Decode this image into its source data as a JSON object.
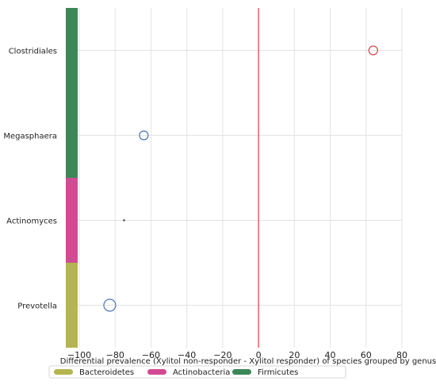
{
  "chart_data": {
    "type": "scatter",
    "title": "",
    "xlabel": "Differential prevalence (Xylitol non-responder - Xylitol responder) of species grouped by genus",
    "ylabel": "",
    "xlim": [
      -103,
      80
    ],
    "xticks": [
      -100,
      -80,
      -60,
      -40,
      -20,
      0,
      20,
      40,
      60,
      80
    ],
    "xtick_labels": [
      "−100",
      "−80",
      "−60",
      "−40",
      "−20",
      "0",
      "20",
      "40",
      "60",
      "80"
    ],
    "grid": true,
    "reference_line": {
      "x": 0,
      "color": "#e8474a"
    },
    "categories": [
      "Clostridiales",
      "Megasphaera",
      "Actinomyces",
      "Prevotella"
    ],
    "points": [
      {
        "category": "Clostridiales",
        "x": 64,
        "size": "medium",
        "color": "#d9434b"
      },
      {
        "category": "Megasphaera",
        "x": -64,
        "size": "medium",
        "color": "#4a74b8"
      },
      {
        "category": "Actinomyces",
        "x": -75,
        "size": "tiny",
        "color": "#333333"
      },
      {
        "category": "Prevotella",
        "x": -83,
        "size": "large",
        "color": "#4a74b8"
      }
    ],
    "phylum_bar": [
      {
        "category": "Clostridiales",
        "phylum": "Firmicutes"
      },
      {
        "category": "Megasphaera",
        "phylum": "Firmicutes"
      },
      {
        "category": "Actinomyces",
        "phylum": "Actinobacteria"
      },
      {
        "category": "Prevotella",
        "phylum": "Bacteroidetes"
      }
    ],
    "legend": {
      "placement": "bottom",
      "entries": [
        {
          "name": "Bacteroidetes",
          "color": "#b5b550"
        },
        {
          "name": "Actinobacteria",
          "color": "#d24a93"
        },
        {
          "name": "Firmicutes",
          "color": "#3c8757"
        }
      ]
    }
  }
}
